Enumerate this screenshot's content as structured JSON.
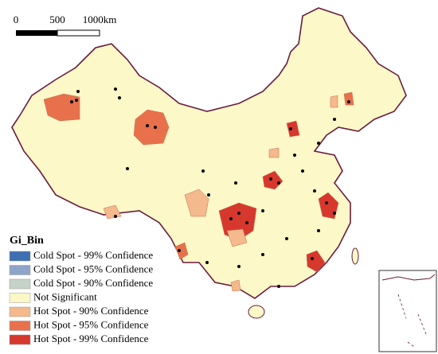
{
  "scale_bar": {
    "labels": [
      "0",
      "500",
      "1000km"
    ]
  },
  "legend": {
    "title": "Gi_Bin",
    "items": [
      {
        "label": "Cold Spot - 99% Confidence",
        "color": "#3f6fb3"
      },
      {
        "label": "Cold Spot - 95% Confidence",
        "color": "#8ea5c8"
      },
      {
        "label": "Cold Spot - 90% Confidence",
        "color": "#c5d2c6"
      },
      {
        "label": "Not Significant",
        "color": "#fbf7c6"
      },
      {
        "label": "Hot Spot - 90% Confidence",
        "color": "#f4b98c"
      },
      {
        "label": "Hot Spot - 95% Confidence",
        "color": "#e8714c"
      },
      {
        "label": "Hot Spot - 99% Confidence",
        "color": "#d7382d"
      }
    ]
  }
}
